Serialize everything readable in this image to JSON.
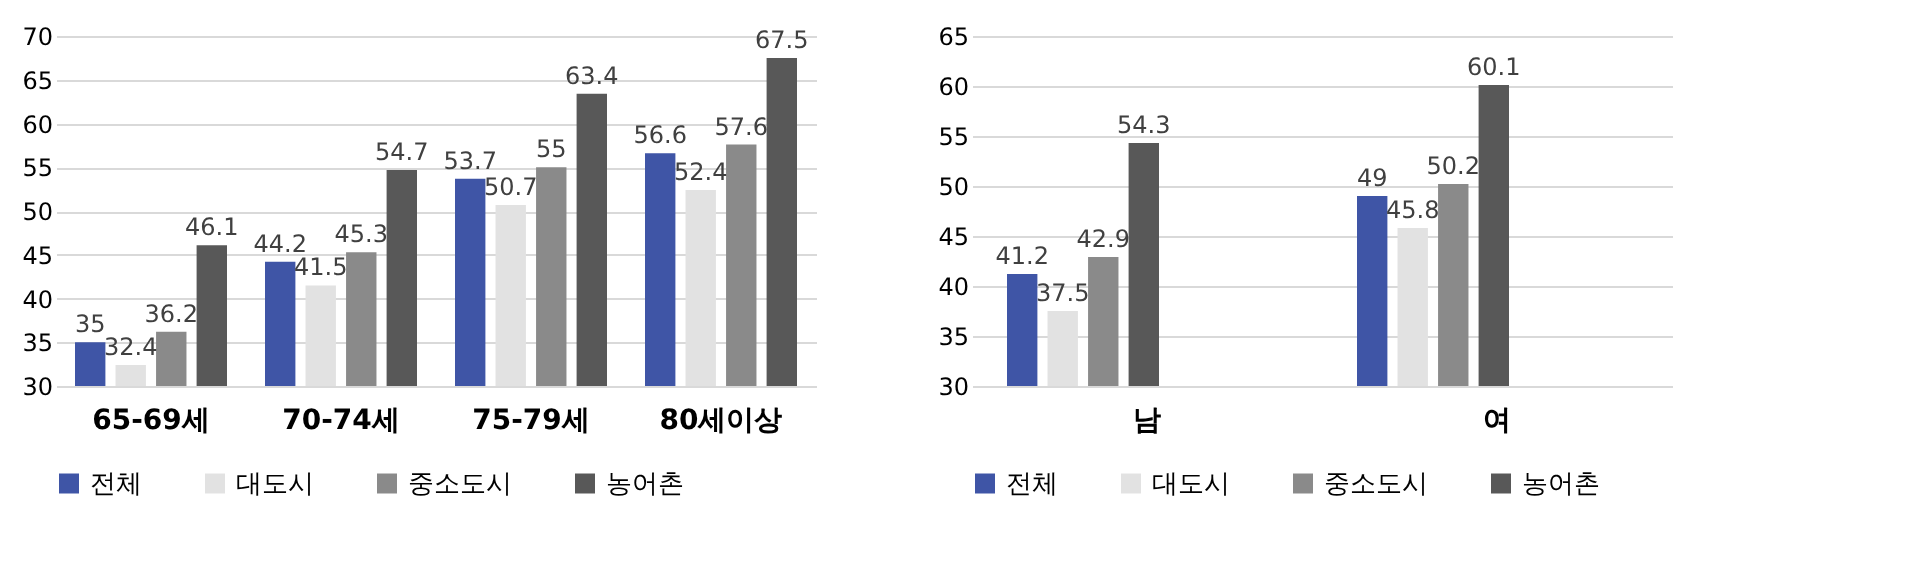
{
  "chart_data": [
    {
      "type": "bar",
      "categories": [
        "65-69세",
        "70-74세",
        "75-79세",
        "80세이상"
      ],
      "series": [
        {
          "name": "전체",
          "color": "#3f55a6",
          "values": [
            35,
            44.2,
            53.7,
            56.6
          ]
        },
        {
          "name": "대도시",
          "color": "#e2e2e2",
          "values": [
            32.4,
            41.5,
            50.7,
            52.4
          ]
        },
        {
          "name": "중소도시",
          "color": "#8a8a8a",
          "values": [
            36.2,
            45.3,
            55,
            57.6
          ]
        },
        {
          "name": "농어촌",
          "color": "#585858",
          "values": [
            46.1,
            54.7,
            63.4,
            67.5
          ]
        }
      ],
      "ylim": [
        30,
        70
      ],
      "yticks": [
        30,
        35,
        40,
        45,
        50,
        55,
        60,
        65,
        70
      ],
      "grid": "y",
      "legend": "bottom",
      "data_labels": true
    },
    {
      "type": "bar",
      "categories": [
        "남",
        "여"
      ],
      "series": [
        {
          "name": "전체",
          "color": "#3f55a6",
          "values": [
            41.2,
            49
          ]
        },
        {
          "name": "대도시",
          "color": "#e2e2e2",
          "values": [
            37.5,
            45.8
          ]
        },
        {
          "name": "중소도시",
          "color": "#8a8a8a",
          "values": [
            42.9,
            50.2
          ]
        },
        {
          "name": "농어촌",
          "color": "#585858",
          "values": [
            54.3,
            60.1
          ]
        }
      ],
      "ylim": [
        30,
        65
      ],
      "yticks": [
        30,
        35,
        40,
        45,
        50,
        55,
        60,
        65
      ],
      "grid": "y",
      "legend": "bottom",
      "data_labels": true
    }
  ]
}
